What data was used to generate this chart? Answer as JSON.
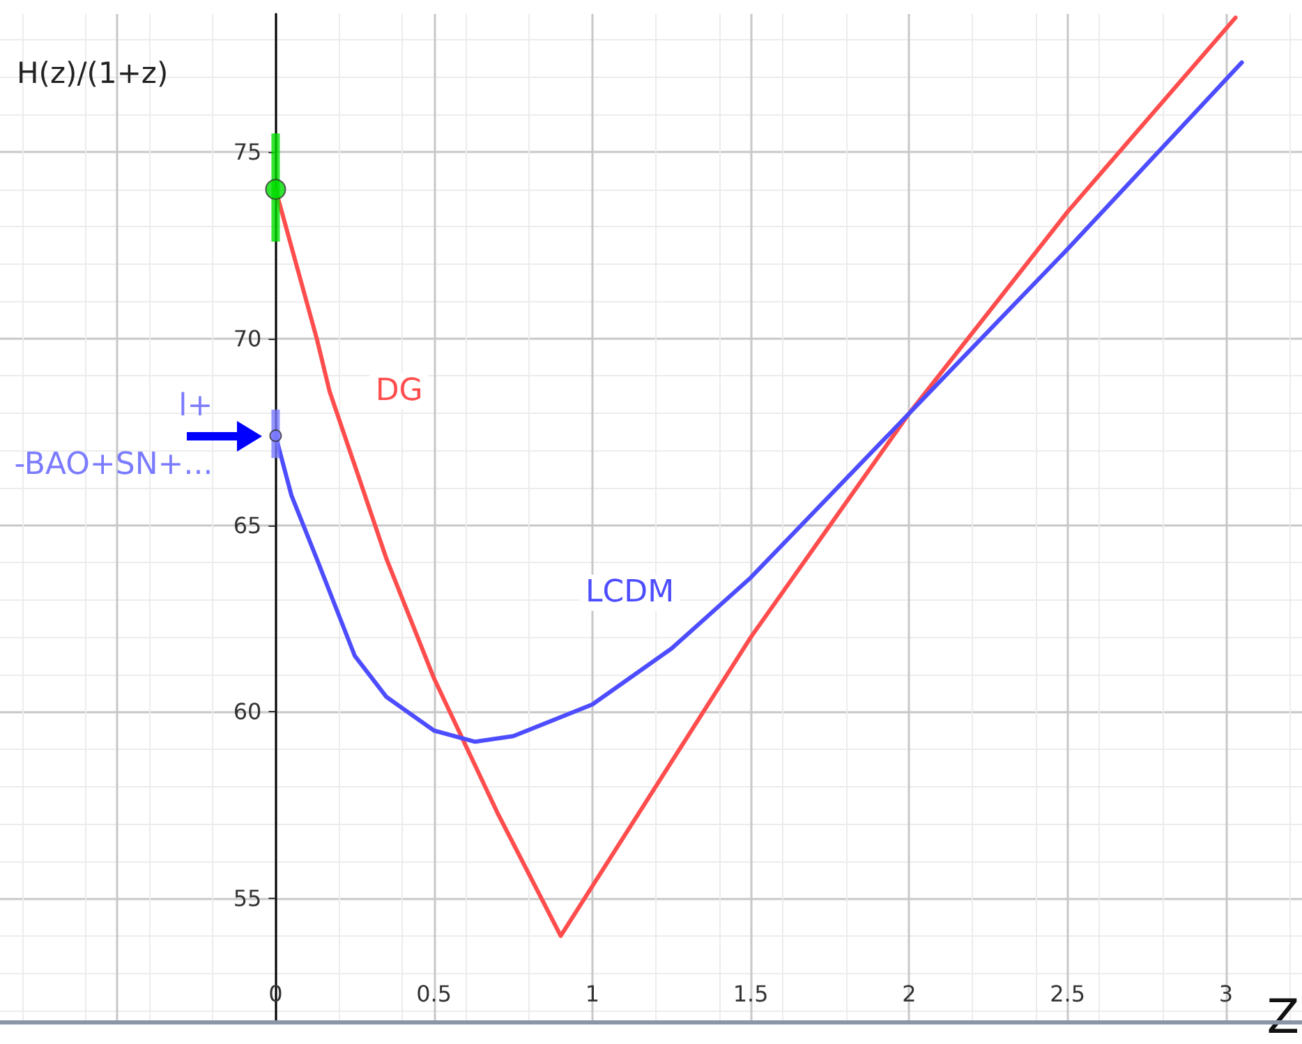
{
  "chart_data": {
    "type": "line",
    "ylabel": "H(z)/(1+z)",
    "xlabel": "Z",
    "xlim": [
      -0.87,
      3.24
    ],
    "ylim": [
      51.7,
      78.7
    ],
    "xticks": [
      {
        "value": -0.5,
        "label": null
      },
      0,
      0.5,
      1,
      1.5,
      2,
      2.5,
      3
    ],
    "yticks": [
      55,
      60,
      65,
      70,
      75
    ],
    "grid": true,
    "series": [
      {
        "name": "DG",
        "color": "#ff4d4d",
        "x": [
          0,
          0.13,
          0.17,
          0.35,
          0.5,
          0.7,
          0.9,
          1.5,
          2,
          2.5,
          3.03
        ],
        "values": [
          74,
          70,
          68.6,
          64.1,
          60.9,
          57.3,
          54,
          62,
          68,
          73.4,
          78.6
        ]
      },
      {
        "name": "LCDM",
        "color": "#4d4dff",
        "x": [
          0,
          0.05,
          0.13,
          0.25,
          0.35,
          0.5,
          0.63,
          0.75,
          1,
          1.25,
          1.5,
          1.75,
          2,
          2.5,
          3.05
        ],
        "values": [
          67.4,
          65.8,
          64.1,
          61.5,
          60.4,
          59.5,
          59.2,
          59.35,
          60.2,
          61.7,
          63.6,
          65.8,
          68,
          72.4,
          77.4
        ]
      },
      {
        "type": "scatter",
        "color": "#00dd00",
        "x": [
          0
        ],
        "values": [
          74
        ],
        "errors": [
          [
            72.6,
            75.5
          ]
        ]
      },
      {
        "type": "scatter",
        "color": "#7b7bff",
        "x": [
          0
        ],
        "values": [
          67.4
        ],
        "errors": [
          [
            66.8,
            68.1
          ]
        ]
      }
    ],
    "annotations": [
      "l+\n-BAO+SN+..."
    ]
  }
}
